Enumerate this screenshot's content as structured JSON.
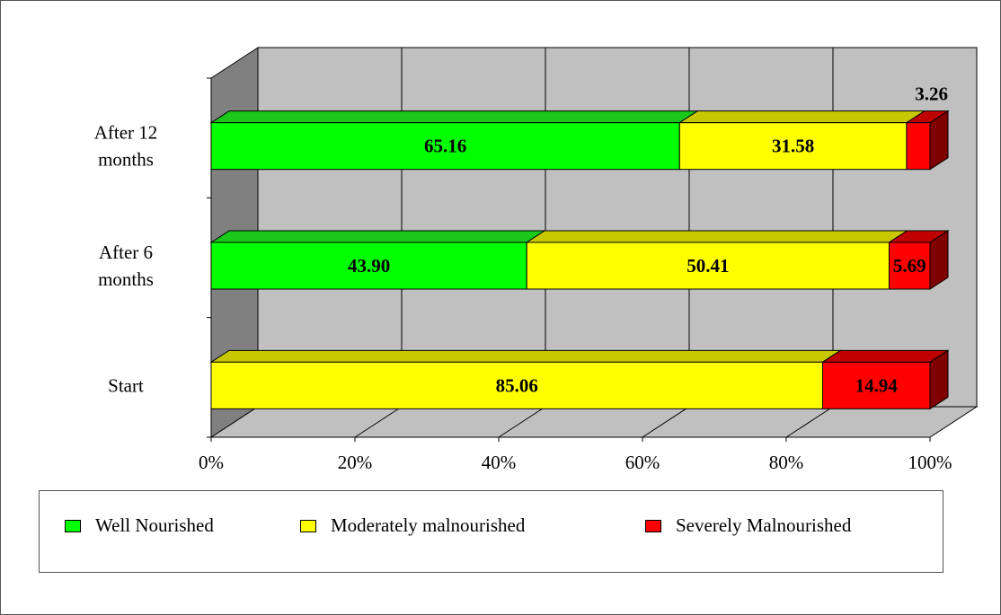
{
  "chart_data": {
    "type": "bar",
    "orientation": "horizontal",
    "stacked": "percent",
    "three_d": true,
    "categories": [
      "Start",
      "After 6 months",
      "After 12 months"
    ],
    "category_lines": [
      [
        "Start"
      ],
      [
        "After 6",
        "months"
      ],
      [
        "After 12",
        "months"
      ]
    ],
    "series": [
      {
        "name": "Well Nourished",
        "values": [
          0,
          43.9,
          65.16
        ],
        "labels": [
          "",
          "43.90",
          "65.16"
        ],
        "color": "#00ff00",
        "top_color": "#19c819"
      },
      {
        "name": "Moderately malnourished",
        "values": [
          85.06,
          50.41,
          31.58
        ],
        "labels": [
          "85.06",
          "50.41",
          "31.58"
        ],
        "color": "#ffff00",
        "top_color": "#c8c800"
      },
      {
        "name": "Severely Malnourished",
        "values": [
          14.94,
          5.69,
          3.26
        ],
        "labels": [
          "14.94",
          "5.69",
          "3.26"
        ],
        "color": "#ff0000",
        "top_color": "#c00000"
      }
    ],
    "x_ticks": [
      "0%",
      "20%",
      "40%",
      "60%",
      "80%",
      "100%"
    ],
    "xlim": [
      0,
      100
    ],
    "grid": true,
    "legend_position": "bottom",
    "wall_color": "#c0c0c0",
    "side_wall_color": "#808080",
    "floor_color": "#c0c0c0"
  },
  "legend": {
    "items": [
      {
        "label": "Well Nourished",
        "color": "#00ff00"
      },
      {
        "label": "Moderately malnourished",
        "color": "#ffff00"
      },
      {
        "label": "Severely Malnourished",
        "color": "#ff0000"
      }
    ]
  }
}
